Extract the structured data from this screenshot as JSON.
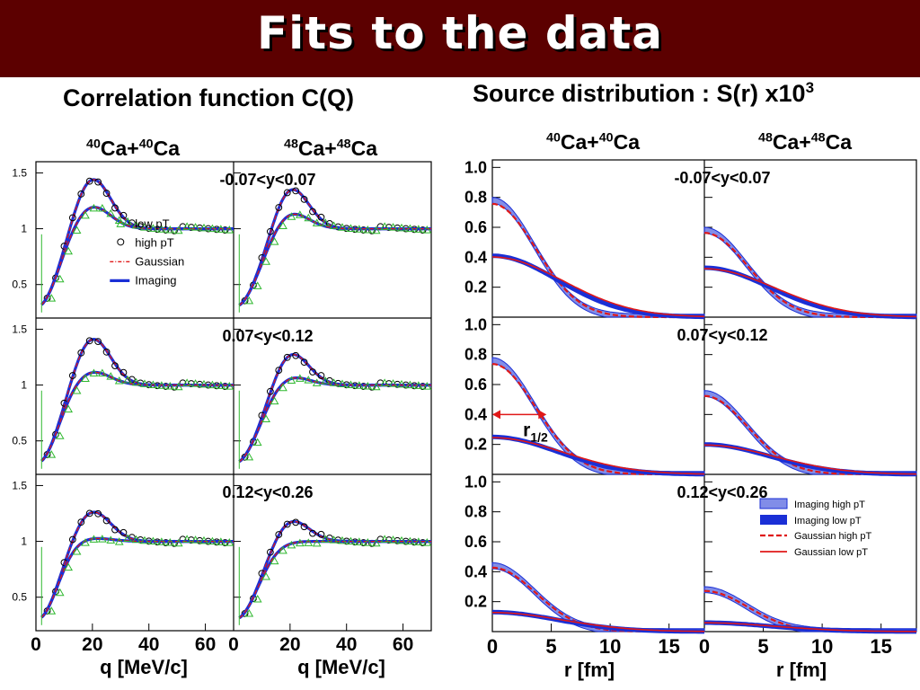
{
  "header": {
    "title": "Fits to the data",
    "left_subtitle": "Correlation function C(Q)",
    "right_subtitle_main": "Source distribution : S(r) x10",
    "right_subtitle_sup": "3"
  },
  "colors": {
    "banner": "#5c0000",
    "imaging": "#1a2fd6",
    "gaussian": "#e01818",
    "low_pt_marker": "#2fb82f",
    "high_pt_marker": "#000000"
  },
  "chart_data": [
    {
      "type": "scatter",
      "title": "Correlation function C(Q)",
      "columns": [
        "40Ca+40Ca",
        "48Ca+48Ca"
      ],
      "rows": [
        "-0.07<y<0.07",
        "0.07<y<0.12",
        "0.12<y<0.26"
      ],
      "xlabel": "q [MeV/c]",
      "xlim": [
        0,
        70
      ],
      "ylim": [
        0.2,
        1.6
      ],
      "xticks": [
        "0",
        "20",
        "40",
        "60",
        "0",
        "20",
        "40",
        "60"
      ],
      "yticks": [
        "0.5",
        "1",
        "1.5"
      ],
      "legend": {
        "placement": "top-left panel, middle",
        "entries": [
          "low pT",
          "high pT",
          "Gaussian",
          "Imaging"
        ]
      },
      "series_shape": {
        "high_pT_peak_q": 20,
        "low_pT_peak_q": 20,
        "baseline": 1.0
      },
      "peaks": [
        {
          "row": "-0.07<y<0.07",
          "system": "40Ca+40Ca",
          "high_pT": 1.45,
          "low_pT": 1.2
        },
        {
          "row": "-0.07<y<0.07",
          "system": "48Ca+48Ca",
          "high_pT": 1.38,
          "low_pT": 1.15
        },
        {
          "row": "0.07<y<0.12",
          "system": "40Ca+40Ca",
          "high_pT": 1.42,
          "low_pT": 1.12
        },
        {
          "row": "0.07<y<0.12",
          "system": "48Ca+48Ca",
          "high_pT": 1.3,
          "low_pT": 1.08
        },
        {
          "row": "0.12<y<0.26",
          "system": "40Ca+40Ca",
          "high_pT": 1.27,
          "low_pT": 1.03
        },
        {
          "row": "0.12<y<0.26",
          "system": "48Ca+48Ca",
          "high_pT": 1.2,
          "low_pT": 1.0
        }
      ]
    },
    {
      "type": "line",
      "title": "Source distribution : S(r) x10",
      "columns": [
        "40Ca+40Ca",
        "48Ca+48Ca"
      ],
      "rows": [
        "-0.07<y<0.07",
        "0.07<y<0.12",
        "0.12<y<0.26"
      ],
      "xlabel": "r [fm]",
      "xlim": [
        0,
        18
      ],
      "ylim": [
        0,
        1.05
      ],
      "xticks": [
        "0",
        "5",
        "10",
        "15",
        "0",
        "5",
        "10",
        "15"
      ],
      "yticks": [
        "0.2",
        "0.4",
        "0.6",
        "0.8",
        "1.0"
      ],
      "legend": {
        "placement": "bottom-right panel, top",
        "entries": [
          "Imaging high pT",
          "Imaging low pT",
          "Gaussian high pT",
          "Gaussian low pT"
        ]
      },
      "annotation": {
        "label": "r",
        "subscript": "1/2",
        "row": "0.07<y<0.12",
        "system": "40Ca+40Ca",
        "y": 0.4,
        "x_range": [
          0,
          4.6
        ]
      },
      "values_at_r0": [
        {
          "row": "-0.07<y<0.07",
          "system": "40Ca+40Ca",
          "high_pT": 0.78,
          "low_pT": 0.41
        },
        {
          "row": "-0.07<y<0.07",
          "system": "48Ca+48Ca",
          "high_pT": 0.58,
          "low_pT": 0.33
        },
        {
          "row": "0.07<y<0.12",
          "system": "40Ca+40Ca",
          "high_pT": 0.76,
          "low_pT": 0.25
        },
        {
          "row": "0.07<y<0.12",
          "system": "48Ca+48Ca",
          "high_pT": 0.54,
          "low_pT": 0.2
        },
        {
          "row": "0.12<y<0.26",
          "system": "40Ca+40Ca",
          "high_pT": 0.44,
          "low_pT": 0.13
        },
        {
          "row": "0.12<y<0.26",
          "system": "48Ca+48Ca",
          "high_pT": 0.28,
          "low_pT": 0.06
        }
      ]
    }
  ]
}
